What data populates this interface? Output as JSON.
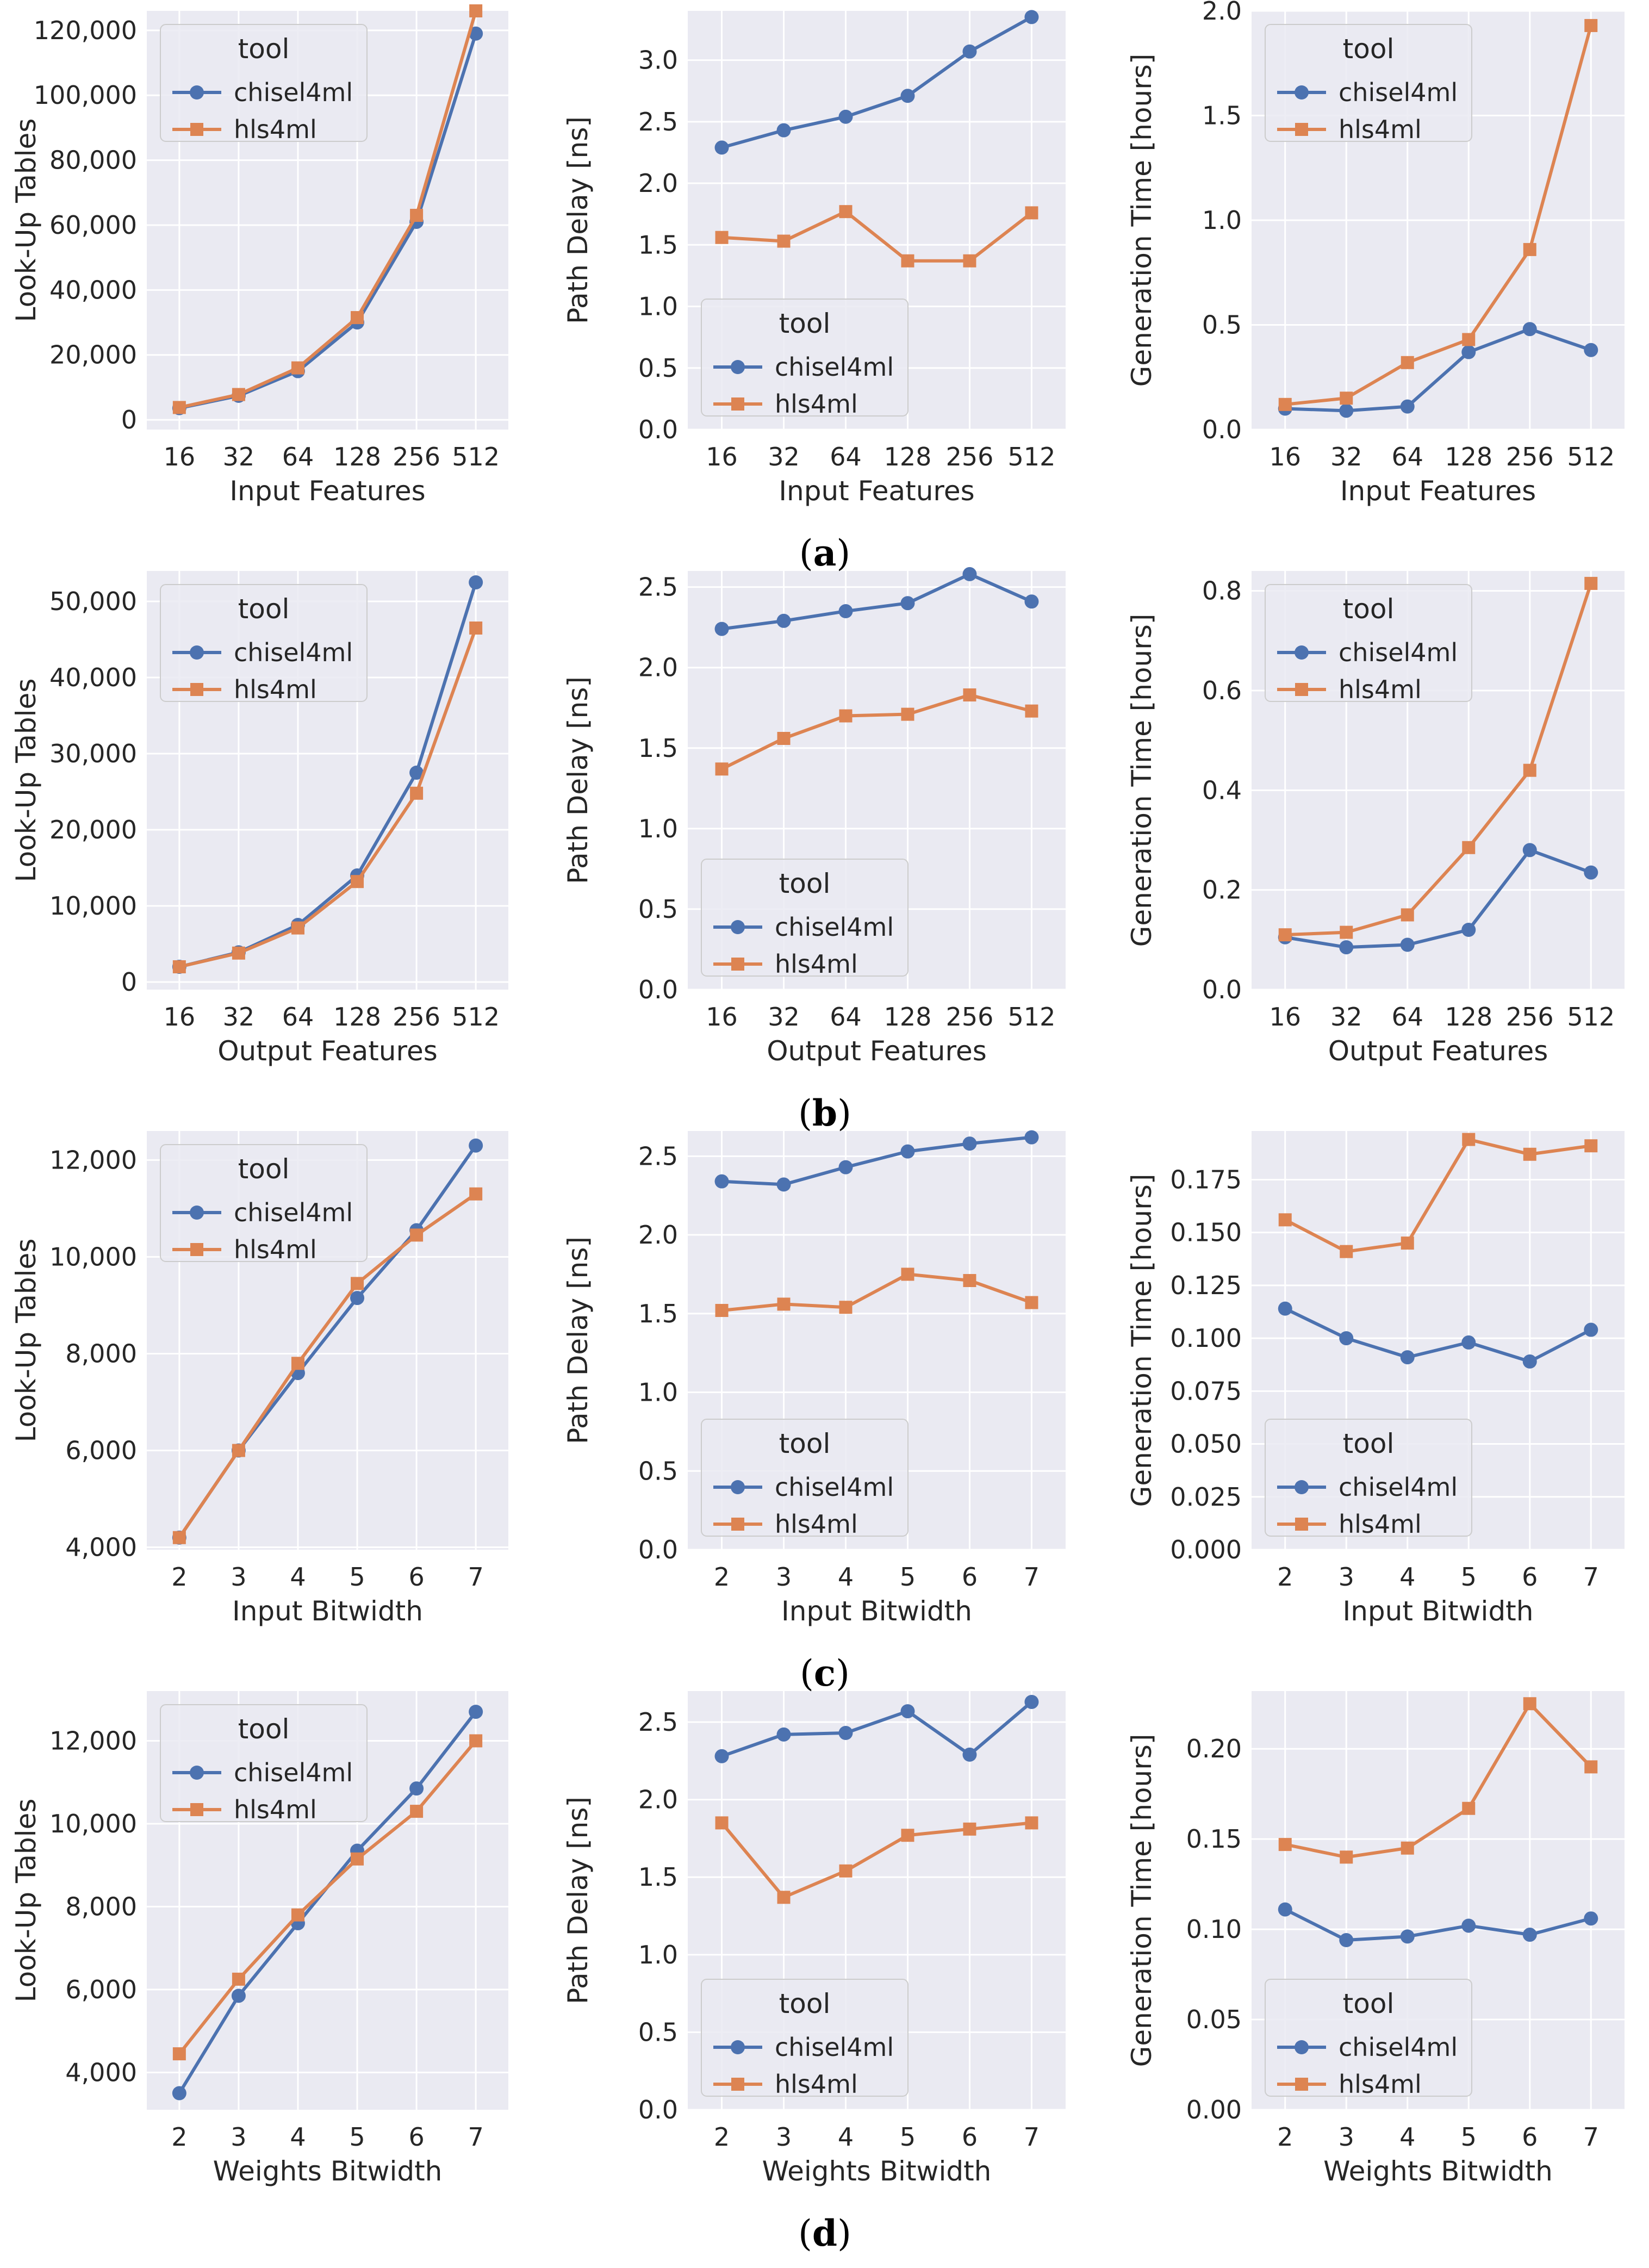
{
  "colors": {
    "chisel4ml": "#4c72b0",
    "hls4ml": "#dd8452",
    "background": "#eaeaf2",
    "grid": "#ffffff"
  },
  "legend": {
    "title": "tool",
    "entries": [
      "chisel4ml",
      "hls4ml"
    ]
  },
  "rows": [
    {
      "caption_letter": "a"
    },
    {
      "caption_letter": "b"
    },
    {
      "caption_letter": "c"
    },
    {
      "caption_letter": "d"
    }
  ],
  "chart_data": [
    {
      "type": "line",
      "row": "a",
      "col": 1,
      "categories": [
        "16",
        "32",
        "64",
        "128",
        "256",
        "512"
      ],
      "xlabel": "Input Features",
      "ylabel": "Look-Up Tables",
      "ylim": [
        -3000,
        126000
      ],
      "yticks": [
        0,
        20000,
        40000,
        60000,
        80000,
        100000,
        120000
      ],
      "yticklabels": [
        "0",
        "20,000",
        "40,000",
        "60,000",
        "80,000",
        "100,000",
        "120,000"
      ],
      "legend_loc": "upper-left",
      "series": [
        {
          "name": "chisel4ml",
          "values": [
            3600,
            7400,
            15000,
            30000,
            61000,
            119000
          ]
        },
        {
          "name": "hls4ml",
          "values": [
            3800,
            7800,
            16000,
            31500,
            63000,
            126000
          ]
        }
      ]
    },
    {
      "type": "line",
      "row": "a",
      "col": 2,
      "categories": [
        "16",
        "32",
        "64",
        "128",
        "256",
        "512"
      ],
      "xlabel": "Input Features",
      "ylabel": "Path Delay [ns]",
      "ylim": [
        0,
        3.4
      ],
      "yticks": [
        0,
        0.5,
        1.0,
        1.5,
        2.0,
        2.5,
        3.0
      ],
      "yticklabels": [
        "0.0",
        "0.5",
        "1.0",
        "1.5",
        "2.0",
        "2.5",
        "3.0"
      ],
      "legend_loc": "lower-left",
      "series": [
        {
          "name": "chisel4ml",
          "values": [
            2.29,
            2.43,
            2.54,
            2.71,
            3.07,
            3.35
          ]
        },
        {
          "name": "hls4ml",
          "values": [
            1.56,
            1.53,
            1.77,
            1.37,
            1.37,
            1.76
          ]
        }
      ]
    },
    {
      "type": "line",
      "row": "a",
      "col": 3,
      "categories": [
        "16",
        "32",
        "64",
        "128",
        "256",
        "512"
      ],
      "xlabel": "Input Features",
      "ylabel": "Generation Time [hours]",
      "ylim": [
        0,
        2.0
      ],
      "yticks": [
        0,
        0.5,
        1.0,
        1.5,
        2.0
      ],
      "yticklabels": [
        "0.0",
        "0.5",
        "1.0",
        "1.5",
        "2.0"
      ],
      "legend_loc": "upper-left",
      "series": [
        {
          "name": "chisel4ml",
          "values": [
            0.1,
            0.09,
            0.11,
            0.37,
            0.48,
            0.38
          ]
        },
        {
          "name": "hls4ml",
          "values": [
            0.12,
            0.15,
            0.32,
            0.43,
            0.86,
            1.93
          ]
        }
      ]
    },
    {
      "type": "line",
      "row": "b",
      "col": 1,
      "categories": [
        "16",
        "32",
        "64",
        "128",
        "256",
        "512"
      ],
      "xlabel": "Output Features",
      "ylabel": "Look-Up Tables",
      "ylim": [
        -1000,
        54000
      ],
      "yticks": [
        0,
        10000,
        20000,
        30000,
        40000,
        50000
      ],
      "yticklabels": [
        "0",
        "10,000",
        "20,000",
        "30,000",
        "40,000",
        "50,000"
      ],
      "legend_loc": "upper-left",
      "series": [
        {
          "name": "chisel4ml",
          "values": [
            2000,
            3900,
            7500,
            14000,
            27500,
            52500
          ]
        },
        {
          "name": "hls4ml",
          "values": [
            2000,
            3800,
            7100,
            13200,
            24800,
            46500
          ]
        }
      ]
    },
    {
      "type": "line",
      "row": "b",
      "col": 2,
      "categories": [
        "16",
        "32",
        "64",
        "128",
        "256",
        "512"
      ],
      "xlabel": "Output Features",
      "ylabel": "Path Delay [ns]",
      "ylim": [
        0,
        2.6
      ],
      "yticks": [
        0,
        0.5,
        1.0,
        1.5,
        2.0,
        2.5
      ],
      "yticklabels": [
        "0.0",
        "0.5",
        "1.0",
        "1.5",
        "2.0",
        "2.5"
      ],
      "legend_loc": "lower-left",
      "series": [
        {
          "name": "chisel4ml",
          "values": [
            2.24,
            2.29,
            2.35,
            2.4,
            2.58,
            2.41
          ]
        },
        {
          "name": "hls4ml",
          "values": [
            1.37,
            1.56,
            1.7,
            1.71,
            1.83,
            1.73
          ]
        }
      ]
    },
    {
      "type": "line",
      "row": "b",
      "col": 3,
      "categories": [
        "16",
        "32",
        "64",
        "128",
        "256",
        "512"
      ],
      "xlabel": "Output Features",
      "ylabel": "Generation Time [hours]",
      "ylim": [
        0,
        0.84
      ],
      "yticks": [
        0,
        0.2,
        0.4,
        0.6,
        0.8
      ],
      "yticklabels": [
        "0.0",
        "0.2",
        "0.4",
        "0.6",
        "0.8"
      ],
      "legend_loc": "upper-left",
      "series": [
        {
          "name": "chisel4ml",
          "values": [
            0.105,
            0.085,
            0.09,
            0.12,
            0.28,
            0.235
          ]
        },
        {
          "name": "hls4ml",
          "values": [
            0.11,
            0.115,
            0.15,
            0.285,
            0.44,
            0.815
          ]
        }
      ]
    },
    {
      "type": "line",
      "row": "c",
      "col": 1,
      "categories": [
        "2",
        "3",
        "4",
        "5",
        "6",
        "7"
      ],
      "xlabel": "Input Bitwidth",
      "ylabel": "Look-Up Tables",
      "ylim": [
        3950,
        12600
      ],
      "yticks": [
        4000,
        6000,
        8000,
        10000,
        12000
      ],
      "yticklabels": [
        "4,000",
        "6,000",
        "8,000",
        "10,000",
        "12,000"
      ],
      "legend_loc": "upper-left",
      "series": [
        {
          "name": "chisel4ml",
          "values": [
            4200,
            6000,
            7600,
            9150,
            10550,
            12300
          ]
        },
        {
          "name": "hls4ml",
          "values": [
            4200,
            6000,
            7800,
            9450,
            10450,
            11300
          ]
        }
      ]
    },
    {
      "type": "line",
      "row": "c",
      "col": 2,
      "categories": [
        "2",
        "3",
        "4",
        "5",
        "6",
        "7"
      ],
      "xlabel": "Input Bitwidth",
      "ylabel": "Path Delay [ns]",
      "ylim": [
        0,
        2.66
      ],
      "yticks": [
        0,
        0.5,
        1.0,
        1.5,
        2.0,
        2.5
      ],
      "yticklabels": [
        "0.0",
        "0.5",
        "1.0",
        "1.5",
        "2.0",
        "2.5"
      ],
      "legend_loc": "lower-left",
      "series": [
        {
          "name": "chisel4ml",
          "values": [
            2.34,
            2.32,
            2.43,
            2.53,
            2.58,
            2.62
          ]
        },
        {
          "name": "hls4ml",
          "values": [
            1.52,
            1.56,
            1.54,
            1.75,
            1.71,
            1.57
          ]
        }
      ]
    },
    {
      "type": "line",
      "row": "c",
      "col": 3,
      "categories": [
        "2",
        "3",
        "4",
        "5",
        "6",
        "7"
      ],
      "xlabel": "Input Bitwidth",
      "ylabel": "Generation Time [hours]",
      "ylim": [
        0,
        0.198
      ],
      "yticks": [
        0,
        0.025,
        0.05,
        0.075,
        0.1,
        0.125,
        0.15,
        0.175
      ],
      "yticklabels": [
        "0.000",
        "0.025",
        "0.050",
        "0.075",
        "0.100",
        "0.125",
        "0.150",
        "0.175"
      ],
      "legend_loc": "lower-left",
      "series": [
        {
          "name": "chisel4ml",
          "values": [
            0.114,
            0.1,
            0.091,
            0.098,
            0.089,
            0.104
          ]
        },
        {
          "name": "hls4ml",
          "values": [
            0.156,
            0.141,
            0.145,
            0.194,
            0.187,
            0.191
          ]
        }
      ]
    },
    {
      "type": "line",
      "row": "d",
      "col": 1,
      "categories": [
        "2",
        "3",
        "4",
        "5",
        "6",
        "7"
      ],
      "xlabel": "Weights Bitwidth",
      "ylabel": "Look-Up Tables",
      "ylim": [
        3100,
        13200
      ],
      "yticks": [
        4000,
        6000,
        8000,
        10000,
        12000
      ],
      "yticklabels": [
        "4,000",
        "6,000",
        "8,000",
        "10,000",
        "12,000"
      ],
      "legend_loc": "upper-left",
      "series": [
        {
          "name": "chisel4ml",
          "values": [
            3500,
            5850,
            7600,
            9350,
            10850,
            12700
          ]
        },
        {
          "name": "hls4ml",
          "values": [
            4450,
            6250,
            7800,
            9150,
            10300,
            12000
          ]
        }
      ]
    },
    {
      "type": "line",
      "row": "d",
      "col": 2,
      "categories": [
        "2",
        "3",
        "4",
        "5",
        "6",
        "7"
      ],
      "xlabel": "Weights Bitwidth",
      "ylabel": "Path Delay [ns]",
      "ylim": [
        0,
        2.7
      ],
      "yticks": [
        0,
        0.5,
        1.0,
        1.5,
        2.0,
        2.5
      ],
      "yticklabels": [
        "0.0",
        "0.5",
        "1.0",
        "1.5",
        "2.0",
        "2.5"
      ],
      "legend_loc": "lower-left",
      "series": [
        {
          "name": "chisel4ml",
          "values": [
            2.28,
            2.42,
            2.43,
            2.57,
            2.29,
            2.63
          ]
        },
        {
          "name": "hls4ml",
          "values": [
            1.85,
            1.37,
            1.54,
            1.77,
            1.81,
            1.85
          ]
        }
      ]
    },
    {
      "type": "line",
      "row": "d",
      "col": 3,
      "categories": [
        "2",
        "3",
        "4",
        "5",
        "6",
        "7"
      ],
      "xlabel": "Weights Bitwidth",
      "ylabel": "Generation Time [hours]",
      "ylim": [
        0,
        0.232
      ],
      "yticks": [
        0,
        0.05,
        0.1,
        0.15,
        0.2
      ],
      "yticklabels": [
        "0.00",
        "0.05",
        "0.10",
        "0.15",
        "0.20"
      ],
      "legend_loc": "lower-left",
      "series": [
        {
          "name": "chisel4ml",
          "values": [
            0.111,
            0.094,
            0.096,
            0.102,
            0.097,
            0.106
          ]
        },
        {
          "name": "hls4ml",
          "values": [
            0.147,
            0.14,
            0.145,
            0.167,
            0.225,
            0.19
          ]
        }
      ]
    }
  ]
}
